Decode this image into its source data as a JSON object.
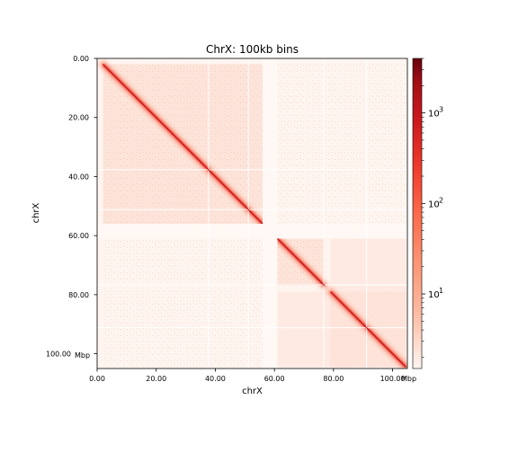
{
  "chart_data": {
    "type": "heatmap",
    "title": "ChrX: 100kb bins",
    "xlabel": "chrX",
    "ylabel": "chrX",
    "xlim": [
      0,
      105
    ],
    "ylim": [
      0,
      105
    ],
    "x_ticks": [
      "0.00",
      "20.00",
      "40.00",
      "60.00",
      "80.00",
      "100.00"
    ],
    "x_tick_values": [
      0,
      20,
      40,
      60,
      80,
      100
    ],
    "y_ticks": [
      "0.00",
      "20.00",
      "40.00",
      "60.00",
      "80.00",
      "100.00"
    ],
    "y_tick_values": [
      0,
      20,
      40,
      60,
      80,
      100
    ],
    "axis_unit": "Mbp",
    "colorbar": {
      "scale": "log",
      "range": [
        1.5,
        4000
      ],
      "ticks": [
        10,
        100,
        1000
      ],
      "tick_labels": [
        "10",
        "10",
        "10"
      ],
      "tick_exponents": [
        "1",
        "2",
        "3"
      ],
      "colormap": [
        "#fff5f0",
        "#fcbba1",
        "#fc9272",
        "#fb6a4a",
        "#ef3b2c",
        "#cb181d",
        "#a50f15",
        "#67000d"
      ]
    },
    "domains_mbp": [
      [
        2,
        56
      ],
      [
        61,
        77
      ],
      [
        79,
        104.5
      ]
    ],
    "unmapped_region_mbp": [
      56,
      61
    ]
  }
}
